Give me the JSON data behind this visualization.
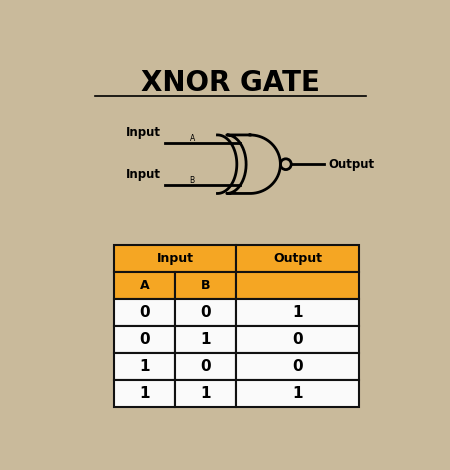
{
  "title": "XNOR GATE",
  "bg_color": "#C9BA9B",
  "title_fontsize": 20,
  "table_header_color": "#F5A623",
  "table_bg_color": "#FAFAFA",
  "table_border_color": "#111111",
  "truth_table": [
    [
      0,
      0,
      1
    ],
    [
      0,
      1,
      0
    ],
    [
      1,
      0,
      0
    ],
    [
      1,
      1,
      1
    ]
  ],
  "input_a_label": "Input",
  "input_a_sub": "A",
  "input_b_label": "Input",
  "input_b_sub": "B",
  "output_label": "Output"
}
